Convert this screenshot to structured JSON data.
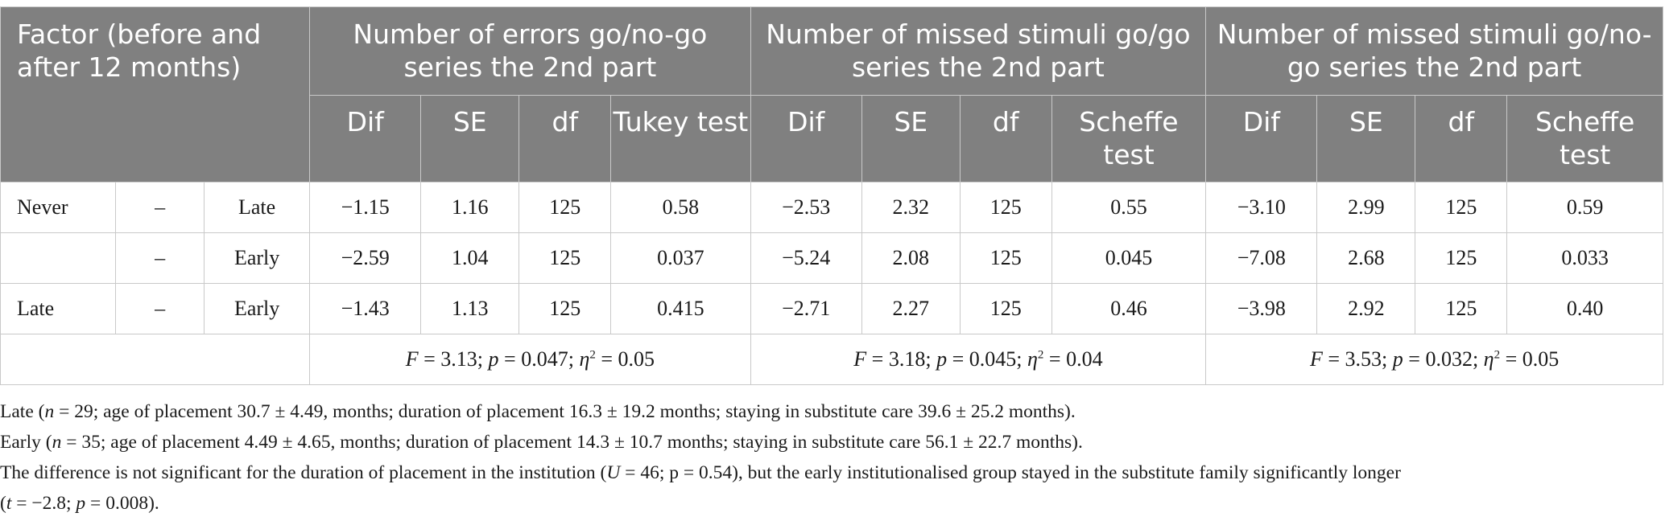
{
  "header": {
    "factor": "Factor (before and after 12 months)",
    "groups": [
      "Number of errors go/no-go series the 2nd part",
      "Number of missed stimuli go/go series the 2nd part",
      "Number of missed stimuli go/no-go series the 2nd part"
    ],
    "sub": [
      [
        "Dif",
        "SE",
        "df",
        "Tukey test"
      ],
      [
        "Dif",
        "SE",
        "df",
        "Scheffe test"
      ],
      [
        "Dif",
        "SE",
        "df",
        "Scheffe test"
      ]
    ]
  },
  "rows": [
    {
      "a": "Never",
      "dash": "–",
      "b": "Late",
      "v": [
        "−1.15",
        "1.16",
        "125",
        "0.58",
        "−2.53",
        "2.32",
        "125",
        "0.55",
        "−3.10",
        "2.99",
        "125",
        "0.59"
      ]
    },
    {
      "a": "",
      "dash": "–",
      "b": "Early",
      "v": [
        "−2.59",
        "1.04",
        "125",
        "0.037",
        "−5.24",
        "2.08",
        "125",
        "0.045",
        "−7.08",
        "2.68",
        "125",
        "0.033"
      ]
    },
    {
      "a": "Late",
      "dash": "–",
      "b": "Early",
      "v": [
        "−1.43",
        "1.13",
        "125",
        "0.415",
        "−2.71",
        "2.27",
        "125",
        "0.46",
        "−3.98",
        "2.92",
        "125",
        "0.40"
      ]
    }
  ],
  "stats": [
    {
      "f": "3.13",
      "p": "0.047",
      "eta": "0.05"
    },
    {
      "f": "3.18",
      "p": "0.045",
      "eta": "0.04"
    },
    {
      "f": "3.53",
      "p": "0.032",
      "eta": "0.05"
    }
  ],
  "notes": {
    "late": {
      "pre": "Late (",
      "n": "29",
      "post": "; age of placement 30.7 ± 4.49, months; duration of placement 16.3 ± 19.2 months; staying in substitute care 39.6 ± 25.2 months)."
    },
    "early": {
      "pre": "Early (",
      "n": "35",
      "post": "; age of placement 4.49 ± 4.65, months; duration of placement 14.3 ± 10.7 months; staying in substitute care 56.1 ± 22.7 months)."
    },
    "diff": {
      "pre": "The difference is not significant for the duration of placement in the institution (",
      "u": "46",
      "mid": "; p = 0.54), but the early institutionalised group stayed in the substitute family significantly longer",
      "t_pre": "(",
      "t": "−2.8",
      "t_mid": "; ",
      "p": "0.008",
      "end": ")."
    }
  }
}
